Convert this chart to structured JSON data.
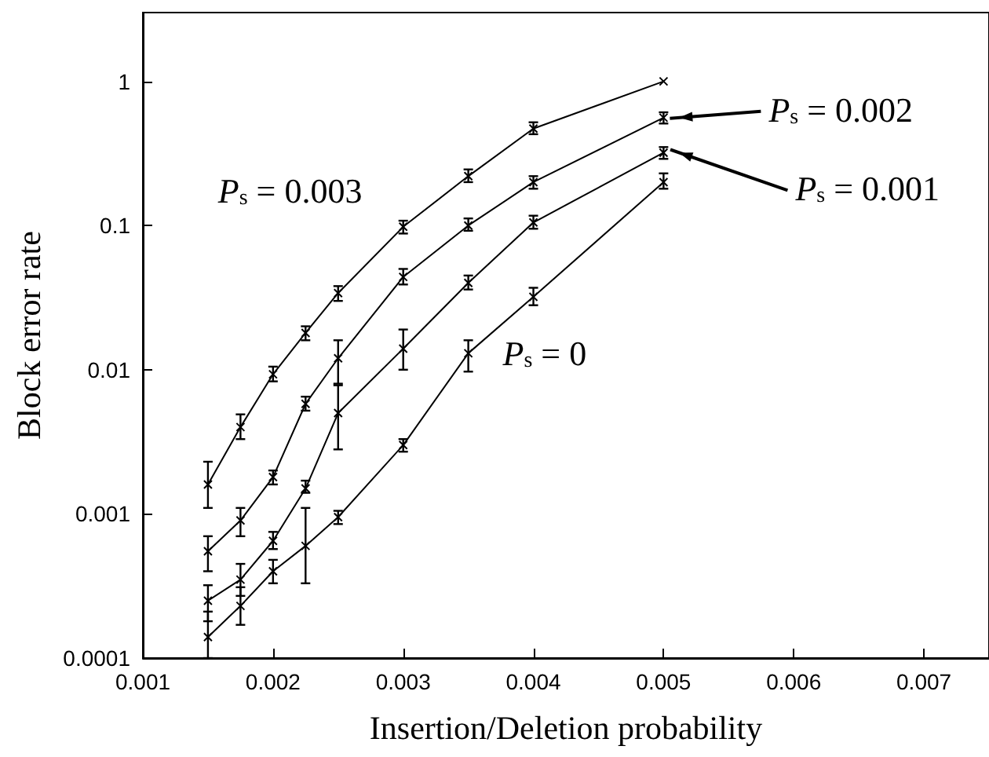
{
  "chart_data": {
    "type": "line",
    "xlabel": "Insertion/Deletion probability",
    "ylabel": "Block error rate",
    "log": "y",
    "marker": "cross",
    "line_style": "solid",
    "grid": false,
    "legend": "right",
    "x": [
      0.0015,
      0.00175,
      0.002,
      0.00225,
      0.0025,
      0.003,
      0.0035,
      0.004,
      0.005
    ],
    "xlim": [
      0.001,
      0.0075
    ],
    "xticks": [
      0.001,
      0.002,
      0.003,
      0.004,
      0.005,
      0.006,
      0.007
    ],
    "ylim": [
      0.0001,
      3
    ],
    "yticks": [
      0.0001,
      0.001,
      0.01,
      0.1,
      1
    ],
    "series": [
      {
        "name": "P$_{s}$ = 0.003",
        "color": "#000000",
        "values": [
          0.0016,
          0.004,
          0.0093,
          0.018,
          0.034,
          0.098,
          0.22,
          0.47,
          1.0
        ],
        "errors": [
          [
            0.0011,
            0.0023
          ],
          [
            0.0033,
            0.0049
          ],
          [
            0.0083,
            0.0105
          ],
          [
            0.016,
            0.02
          ],
          [
            0.03,
            0.038
          ],
          [
            0.088,
            0.108
          ],
          [
            0.2,
            0.245
          ],
          [
            0.43,
            0.52
          ],
          null
        ]
      },
      {
        "name": "P$_{s}$ = 0.002",
        "color": "#000000",
        "values": [
          0.00055,
          0.0009,
          0.0018,
          0.0058,
          0.012,
          0.044,
          0.1,
          0.2,
          0.56
        ],
        "errors": [
          [
            0.0004,
            0.0007
          ],
          [
            0.0007,
            0.0011
          ],
          [
            0.0016,
            0.002
          ],
          [
            0.0052,
            0.0065
          ],
          [
            0.008,
            0.016
          ],
          [
            0.039,
            0.05
          ],
          [
            0.092,
            0.112
          ],
          [
            0.18,
            0.22
          ],
          [
            0.51,
            0.61
          ]
        ]
      },
      {
        "name": "P$_{s}$ = 0.001",
        "color": "#000000",
        "values": [
          0.00025,
          0.00035,
          0.00065,
          0.0015,
          0.005,
          0.014,
          0.04,
          0.105,
          0.32
        ],
        "errors": [
          [
            0.00018,
            0.00032
          ],
          [
            0.00027,
            0.00045
          ],
          [
            0.00057,
            0.00075
          ],
          [
            0.0014,
            0.0017
          ],
          [
            0.0028,
            0.0078
          ],
          [
            0.01,
            0.019
          ],
          [
            0.036,
            0.045
          ],
          [
            0.095,
            0.117
          ],
          [
            0.29,
            0.35
          ]
        ]
      },
      {
        "name": "P$_{s}$ = 0",
        "color": "#000000",
        "values": [
          0.00014,
          0.00023,
          0.0004,
          0.0006,
          0.00095,
          0.003,
          0.013,
          0.032,
          0.2
        ],
        "errors": [
          [
            0.0001,
            0.00021
          ],
          [
            0.00017,
            0.00031
          ],
          [
            0.00033,
            0.00048
          ],
          [
            0.00033,
            0.0011
          ],
          [
            0.00085,
            0.00105
          ],
          [
            0.0027,
            0.0033
          ],
          [
            0.0097,
            0.016
          ],
          [
            0.028,
            0.037
          ],
          [
            0.18,
            0.23
          ]
        ]
      }
    ]
  }
}
